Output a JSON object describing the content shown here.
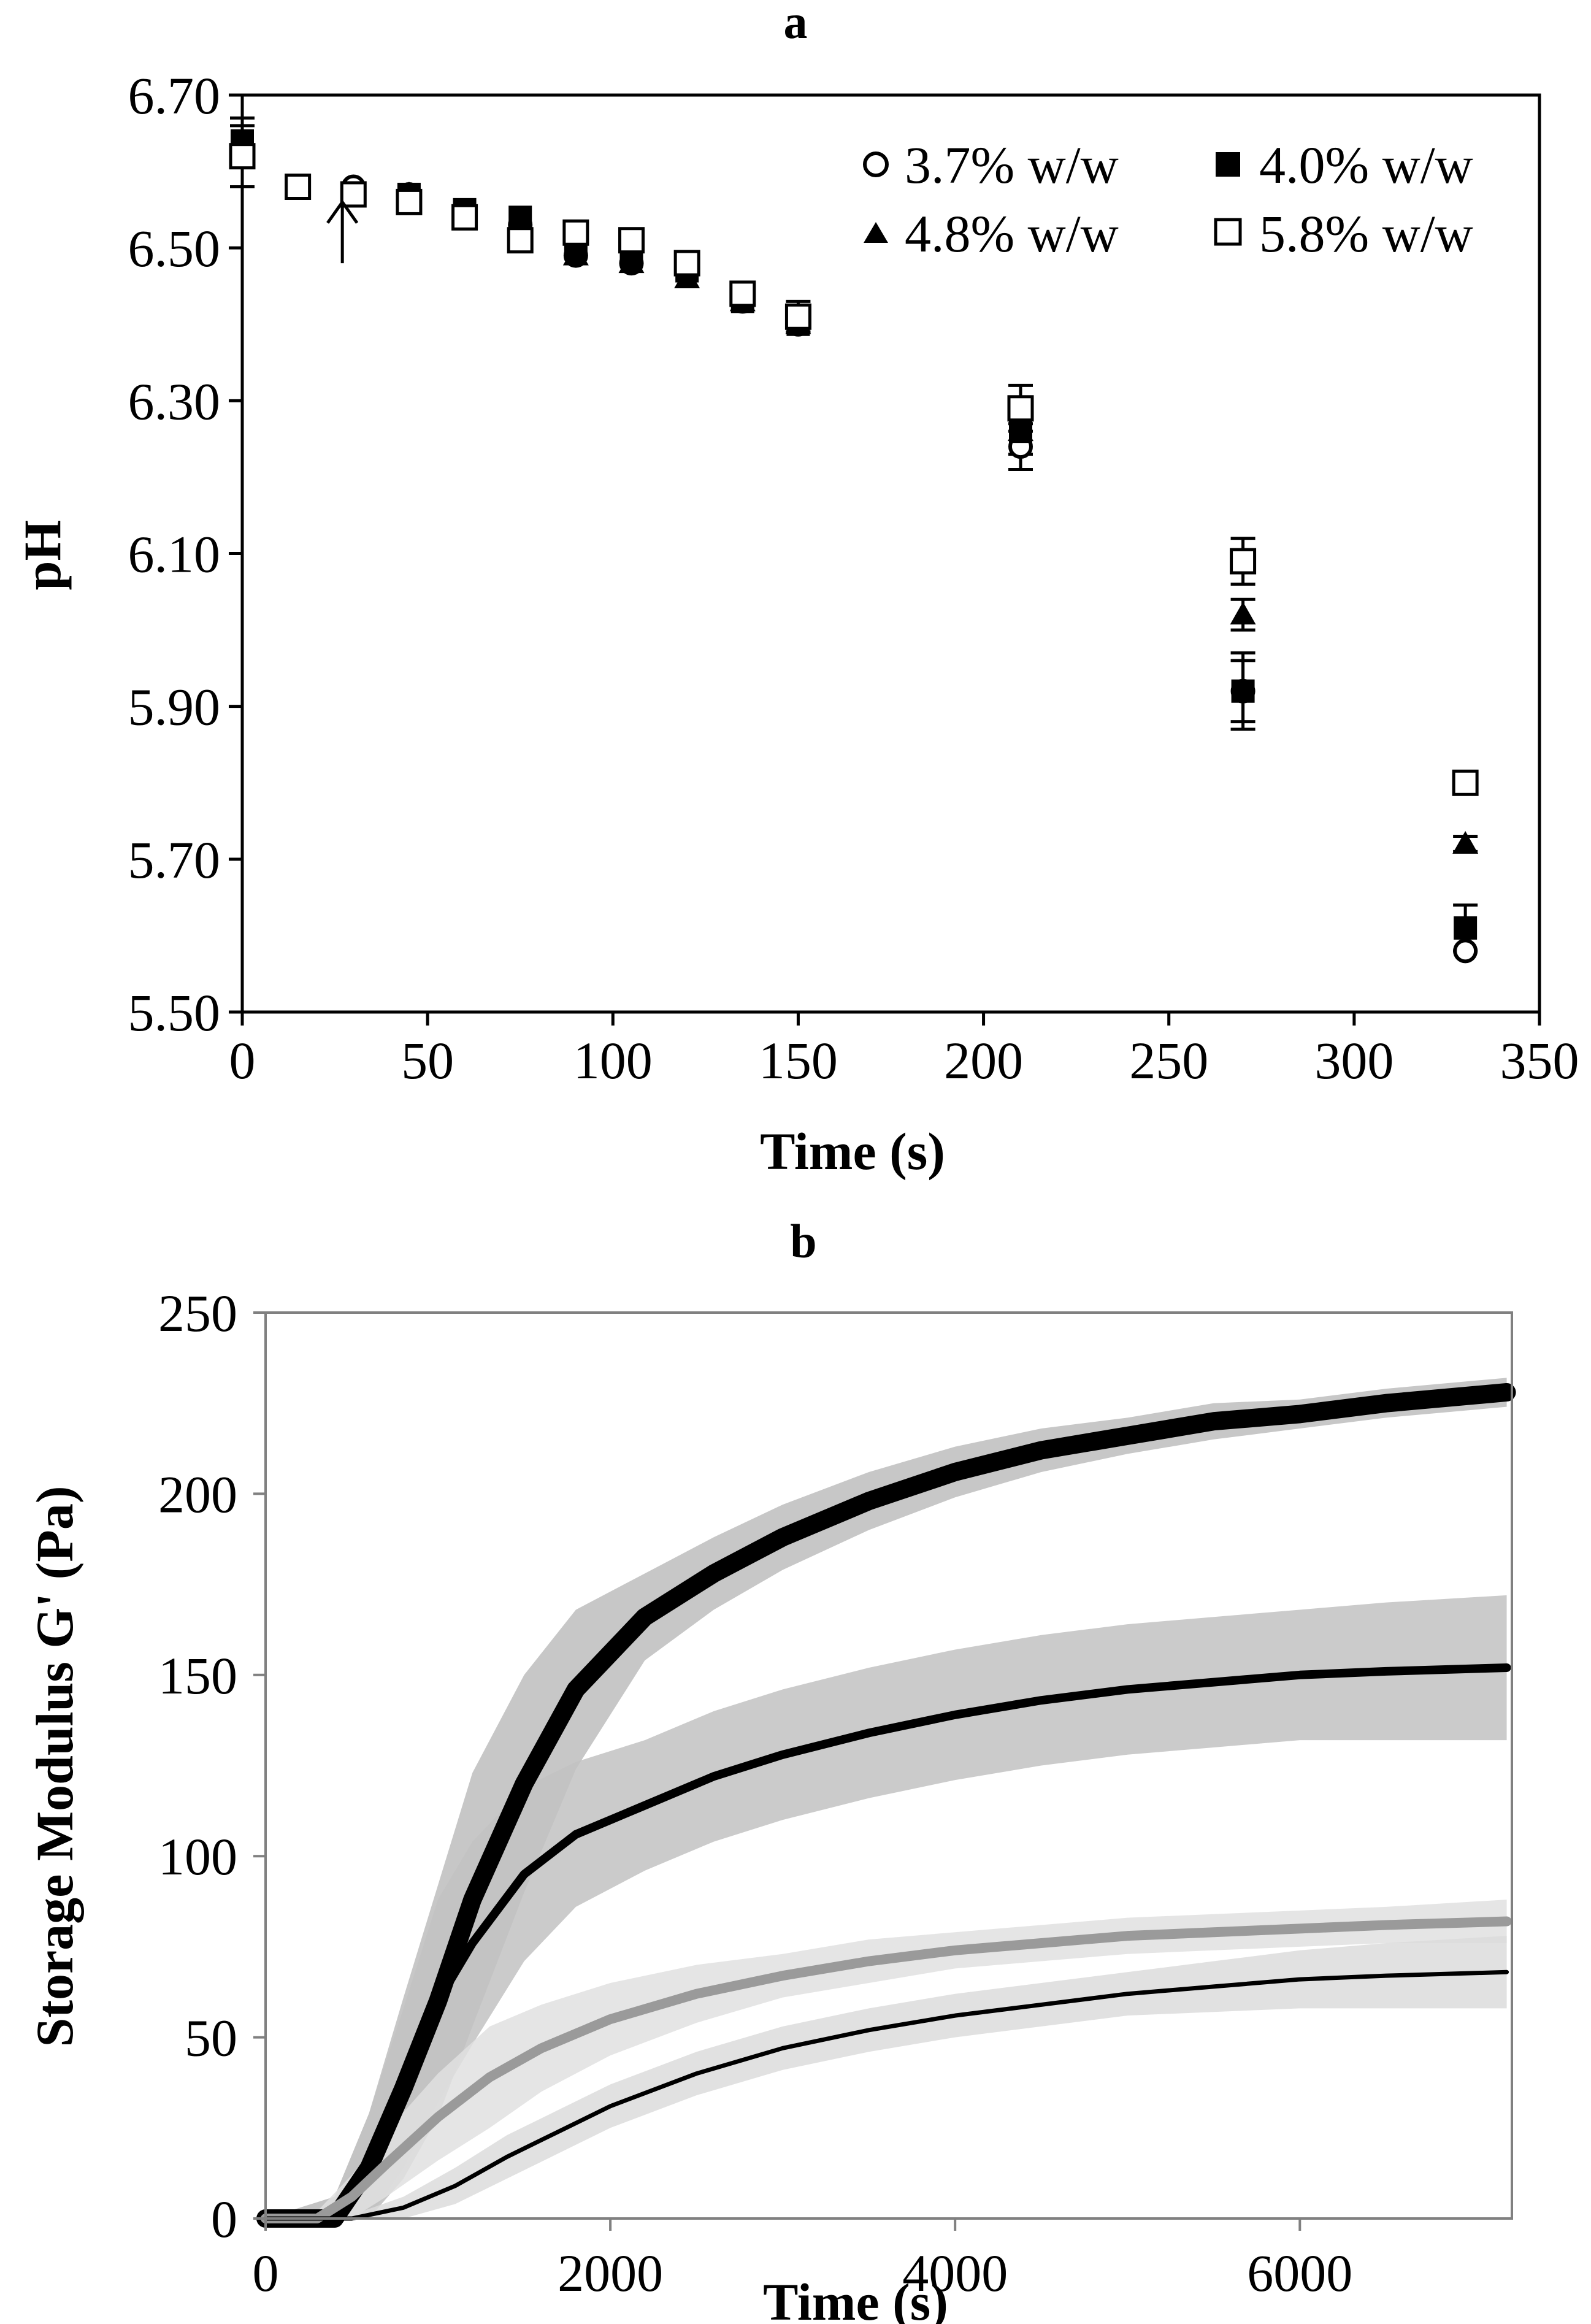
{
  "chart_data": [
    {
      "panel": "a",
      "type": "scatter",
      "xlabel": "Time (s)",
      "ylabel": "pH",
      "xlim": [
        0,
        350
      ],
      "ylim": [
        5.5,
        6.7
      ],
      "xticks": [
        "0",
        "50",
        "100",
        "150",
        "200",
        "250",
        "300",
        "350"
      ],
      "yticks": [
        "5.50",
        "5.70",
        "5.90",
        "6.10",
        "6.30",
        "6.50",
        "6.70"
      ],
      "xtick_values": [
        0,
        50,
        100,
        150,
        200,
        250,
        300,
        350
      ],
      "ytick_values": [
        5.5,
        5.7,
        5.9,
        6.1,
        6.3,
        6.5,
        6.7
      ],
      "legend_position": "top-right",
      "annotation": "arrow at t = 27 s",
      "arrow": {
        "x": 27,
        "y_tip": 6.56,
        "y_tail": 6.48
      },
      "series": [
        {
          "name": "3.7% w/w",
          "marker": "open-circle",
          "x": [
            0,
            15,
            30,
            45,
            60,
            75,
            90,
            105,
            120,
            135,
            150,
            210,
            270,
            330
          ],
          "y": [
            6.63,
            6.58,
            6.58,
            6.57,
            6.54,
            6.53,
            6.49,
            6.48,
            6.47,
            6.43,
            6.4,
            6.24,
            5.92,
            5.58
          ],
          "err": [
            0,
            0,
            0,
            0,
            0,
            0,
            0,
            0,
            0,
            0,
            0,
            0.03,
            0.04,
            0
          ]
        },
        {
          "name": "4.0% w/w",
          "marker": "filled-square",
          "x": [
            0,
            15,
            30,
            45,
            60,
            75,
            90,
            105,
            120,
            135,
            150,
            210,
            270,
            330
          ],
          "y": [
            6.64,
            6.58,
            6.57,
            6.57,
            6.55,
            6.54,
            6.5,
            6.49,
            6.47,
            6.43,
            6.4,
            6.26,
            5.92,
            5.61
          ],
          "err": [
            0.03,
            0,
            0,
            0,
            0,
            0,
            0,
            0,
            0,
            0,
            0.01,
            0.03,
            0.05,
            0.03
          ]
        },
        {
          "name": "4.8% w/w",
          "marker": "filled-triangle",
          "x": [
            0,
            15,
            30,
            45,
            60,
            75,
            90,
            105,
            120,
            135,
            150,
            210,
            270,
            330
          ],
          "y": [
            6.63,
            6.58,
            6.57,
            6.57,
            6.54,
            6.53,
            6.49,
            6.48,
            6.46,
            6.43,
            6.4,
            6.26,
            6.02,
            5.72
          ],
          "err": [
            0,
            0,
            0,
            0,
            0,
            0,
            0,
            0,
            0,
            0,
            0,
            0,
            0.02,
            0.01
          ]
        },
        {
          "name": "5.8% w/w",
          "marker": "open-square",
          "x": [
            0,
            15,
            30,
            45,
            60,
            75,
            90,
            105,
            120,
            135,
            150,
            210,
            270,
            330
          ],
          "y": [
            6.62,
            6.58,
            6.57,
            6.56,
            6.54,
            6.51,
            6.52,
            6.51,
            6.48,
            6.44,
            6.41,
            6.29,
            6.09,
            5.8
          ],
          "err": [
            0.04,
            0,
            0,
            0,
            0,
            0,
            0,
            0,
            0,
            0,
            0.02,
            0.03,
            0.03,
            0
          ]
        }
      ]
    },
    {
      "panel": "b",
      "type": "line",
      "xlabel": "Time (s)",
      "ylabel": "Storage Modulus G' (Pa)",
      "xlim": [
        0,
        7200
      ],
      "ylim": [
        0,
        250
      ],
      "xticks": [
        "0",
        "2000",
        "4000",
        "6000"
      ],
      "yticks": [
        "0",
        "50",
        "100",
        "150",
        "200",
        "250"
      ],
      "xtick_values": [
        0,
        2000,
        4000,
        6000
      ],
      "ytick_values": [
        0,
        50,
        100,
        150,
        200,
        250
      ],
      "band_color": "#bdbdbd",
      "series": [
        {
          "color": "#000000",
          "band_color": "#bdbdbd",
          "x": [
            0,
            400,
            600,
            800,
            1000,
            1200,
            1500,
            1800,
            2200,
            2600,
            3000,
            3500,
            4000,
            4500,
            5000,
            5500,
            6000,
            6500,
            7200
          ],
          "y": [
            0,
            0,
            14,
            36,
            60,
            88,
            120,
            146,
            166,
            178,
            188,
            198,
            206,
            212,
            216,
            220,
            222,
            225,
            228
          ],
          "band": [
            0,
            6,
            15,
            25,
            32,
            35,
            30,
            22,
            12,
            10,
            9,
            8,
            7,
            6,
            5,
            5,
            4,
            4,
            4
          ]
        },
        {
          "color": "#000000",
          "band_color": "#c2c2c2",
          "x": [
            0,
            400,
            600,
            800,
            1000,
            1200,
            1500,
            1800,
            2200,
            2600,
            3000,
            3500,
            4000,
            4500,
            5000,
            5500,
            6000,
            6500,
            7200
          ],
          "y": [
            0,
            0,
            14,
            36,
            60,
            76,
            95,
            106,
            114,
            122,
            128,
            134,
            139,
            143,
            146,
            148,
            150,
            151,
            152
          ],
          "band": [
            0,
            6,
            15,
            22,
            28,
            28,
            24,
            20,
            18,
            18,
            18,
            18,
            18,
            18,
            18,
            18,
            18,
            19,
            20
          ]
        },
        {
          "color": "#9a9a9a",
          "band_color": "#e0e0e0",
          "x": [
            0,
            300,
            500,
            700,
            1000,
            1300,
            1600,
            2000,
            2500,
            3000,
            3500,
            4000,
            4500,
            5000,
            5500,
            6000,
            6500,
            7200
          ],
          "y": [
            0,
            0,
            6,
            15,
            28,
            39,
            47,
            55,
            62,
            67,
            71,
            74,
            76,
            78,
            79,
            80,
            81,
            82
          ],
          "band": [
            0,
            2,
            6,
            9,
            12,
            14,
            12,
            10,
            8,
            6,
            6,
            5,
            5,
            5,
            5,
            5,
            5,
            6
          ]
        },
        {
          "color": "#000000",
          "band_color": "#dcdcdc",
          "x": [
            0,
            500,
            800,
            1100,
            1400,
            1700,
            2000,
            2500,
            3000,
            3500,
            4000,
            4500,
            5000,
            5500,
            6000,
            6500,
            7200
          ],
          "y": [
            0,
            0,
            3,
            9,
            17,
            24,
            31,
            40,
            47,
            52,
            56,
            59,
            62,
            64,
            66,
            67,
            68
          ],
          "band": [
            0,
            1,
            3,
            5,
            6,
            6,
            6,
            6,
            6,
            6,
            6,
            6,
            6,
            7,
            8,
            9,
            10
          ]
        }
      ]
    }
  ]
}
